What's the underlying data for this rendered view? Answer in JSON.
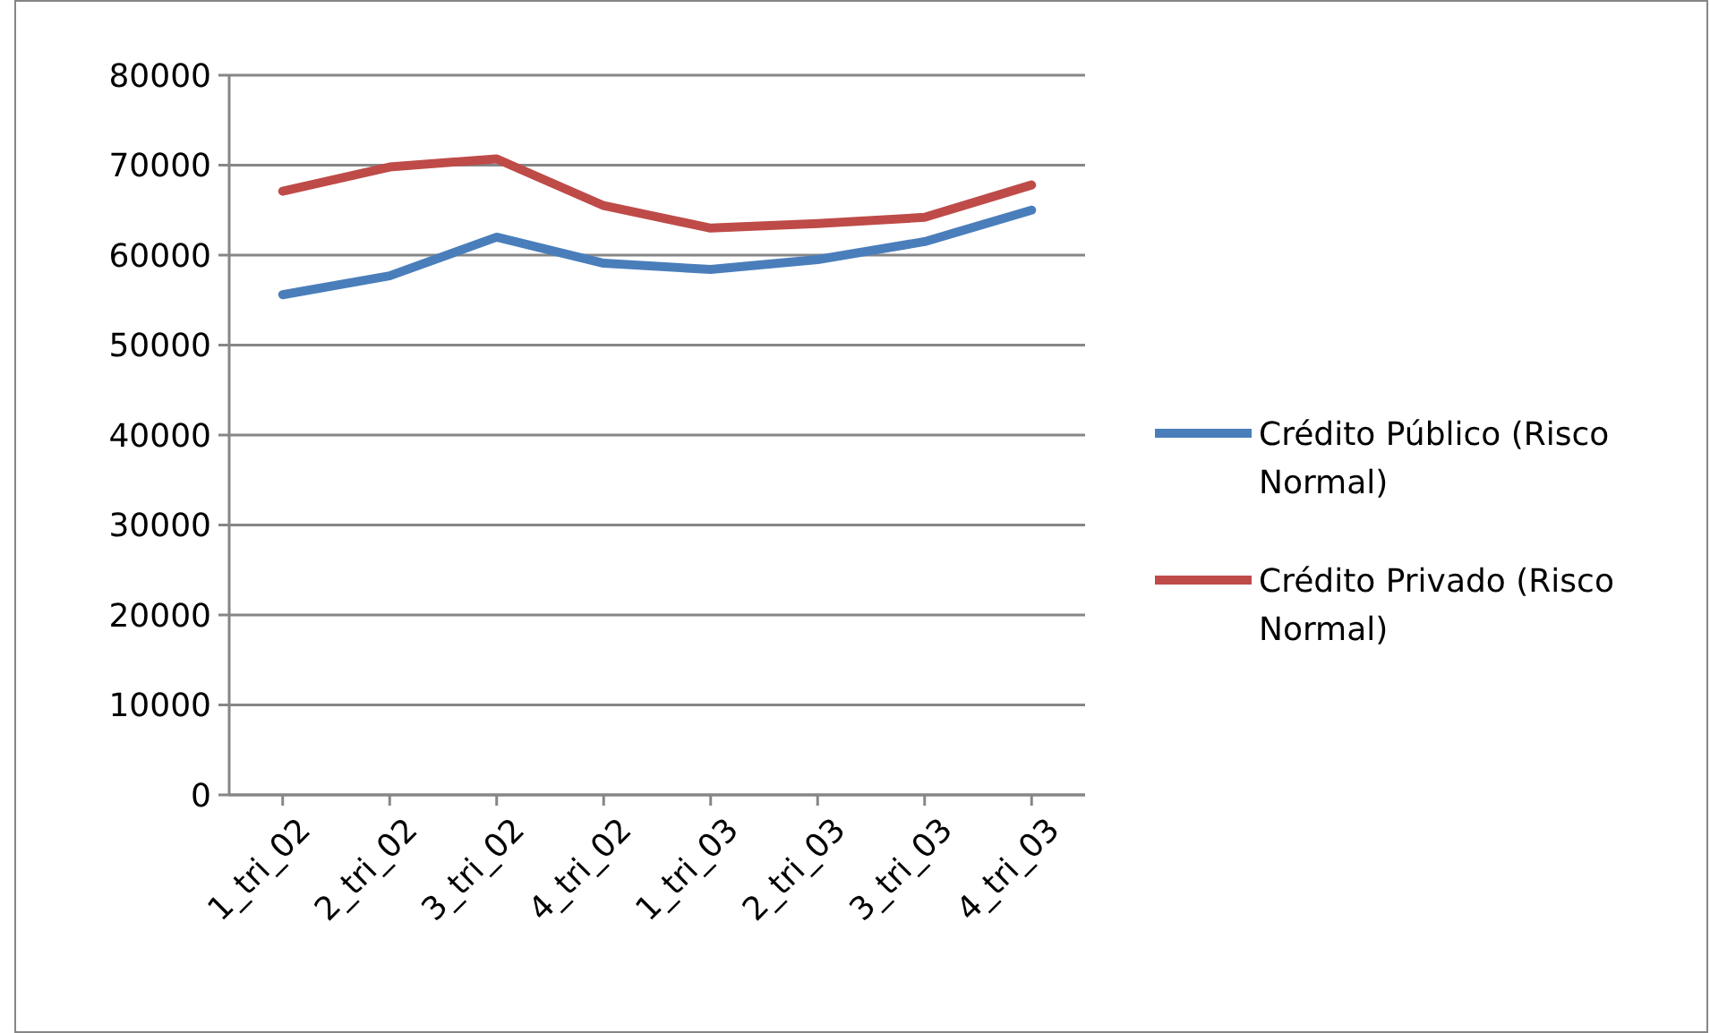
{
  "chart_data": {
    "type": "line",
    "categories": [
      "1_tri_02",
      "2_tri_02",
      "3_tri_02",
      "4_tri_02",
      "1_tri_03",
      "2_tri_03",
      "3_tri_03",
      "4_tri_03"
    ],
    "series": [
      {
        "name": "Crédito Público (Risco Normal)",
        "color": "#4a7ebb",
        "values": [
          55600,
          57700,
          62000,
          59100,
          58400,
          59500,
          61500,
          65000
        ]
      },
      {
        "name": "Crédito Privado (Risco Normal)",
        "color": "#be4b48",
        "values": [
          67100,
          69800,
          70700,
          65500,
          63000,
          63500,
          64200,
          67800
        ]
      }
    ],
    "ylim": [
      0,
      80000
    ],
    "yticks": [
      0,
      10000,
      20000,
      30000,
      40000,
      50000,
      60000,
      70000,
      80000
    ],
    "grid": "y",
    "legend": "right",
    "marker": "none",
    "line_style": "solid"
  }
}
